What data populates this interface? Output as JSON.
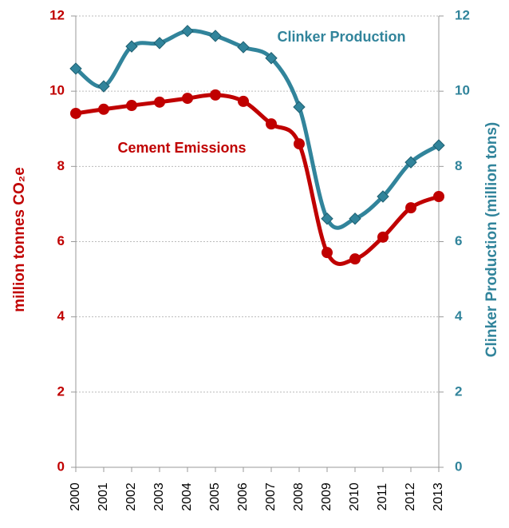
{
  "chart_data": {
    "type": "line",
    "x": [
      "2000",
      "2001",
      "2002",
      "2003",
      "2004",
      "2005",
      "2006",
      "2007",
      "2008",
      "2009",
      "2010",
      "2011",
      "2012",
      "2013"
    ],
    "y_label": "million tonnes CO₂e",
    "y2_label": "Clinker Production (million tons)",
    "ylim": [
      0,
      12
    ],
    "yticks": [
      0,
      2,
      4,
      6,
      8,
      10,
      12
    ],
    "y2lim": [
      0,
      12
    ],
    "y2ticks": [
      0,
      2,
      4,
      6,
      8,
      10,
      12
    ],
    "grid": true,
    "series": [
      {
        "name": "Cement Emissions",
        "color": "#c00000",
        "marker": "circle",
        "values": [
          9.41,
          9.52,
          9.62,
          9.71,
          9.81,
          9.9,
          9.73,
          9.13,
          8.6,
          5.71,
          5.54,
          6.12,
          6.9,
          7.2
        ]
      },
      {
        "name": "Clinker Production",
        "color": "#31849b",
        "marker": "diamond",
        "axis": "y2",
        "values": [
          10.6,
          10.13,
          11.19,
          11.28,
          11.6,
          11.47,
          11.17,
          10.88,
          9.58,
          6.61,
          6.61,
          7.2,
          8.11,
          8.56
        ]
      }
    ]
  }
}
